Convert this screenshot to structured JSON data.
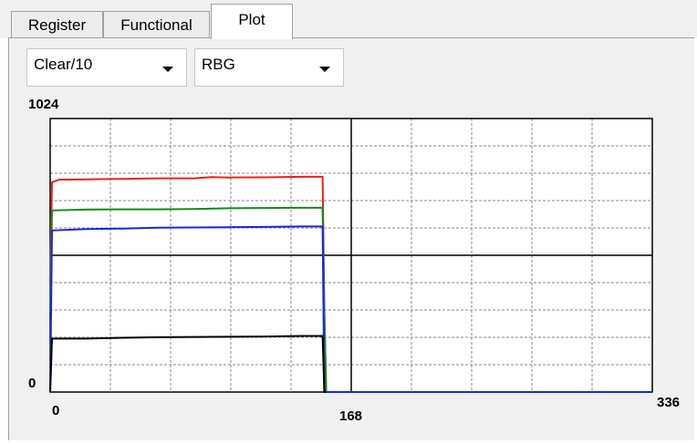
{
  "tabs": [
    {
      "label": "Register",
      "active": false
    },
    {
      "label": "Functional",
      "active": false
    },
    {
      "label": "Plot",
      "active": true
    }
  ],
  "controls": {
    "mode_select": {
      "value": "Clear/10"
    },
    "channel_select": {
      "value": "RBG"
    }
  },
  "colors": {
    "red": "#e8231f",
    "green": "#138a1c",
    "blue": "#1c24e6",
    "black": "#000000",
    "grid": "#888888"
  },
  "chart_data": {
    "type": "line",
    "xlim": [
      0,
      336
    ],
    "ylim": [
      0,
      1024
    ],
    "grid": true,
    "x_major_dividers": [
      168
    ],
    "y_major_dividers": [
      512
    ],
    "x_ticks": [
      "0",
      "168",
      "336"
    ],
    "y_ticks": [
      "1024",
      "0"
    ],
    "series": [
      {
        "color": "red",
        "points": [
          [
            0,
            400
          ],
          [
            1,
            785
          ],
          [
            5,
            795
          ],
          [
            20,
            796
          ],
          [
            40,
            798
          ],
          [
            60,
            800
          ],
          [
            80,
            800
          ],
          [
            90,
            805
          ],
          [
            100,
            803
          ],
          [
            120,
            804
          ],
          [
            140,
            806
          ],
          [
            152,
            806
          ],
          [
            153,
            300
          ],
          [
            154,
            0
          ],
          [
            336,
            0
          ]
        ]
      },
      {
        "color": "green",
        "points": [
          [
            0,
            300
          ],
          [
            1,
            680
          ],
          [
            20,
            683
          ],
          [
            40,
            684
          ],
          [
            60,
            684
          ],
          [
            80,
            685
          ],
          [
            100,
            688
          ],
          [
            120,
            689
          ],
          [
            140,
            690
          ],
          [
            152,
            690
          ],
          [
            153,
            300
          ],
          [
            154,
            0
          ],
          [
            336,
            0
          ]
        ]
      },
      {
        "color": "blue",
        "points": [
          [
            0,
            0
          ],
          [
            1,
            605
          ],
          [
            20,
            610
          ],
          [
            40,
            612
          ],
          [
            60,
            615
          ],
          [
            80,
            616
          ],
          [
            100,
            617
          ],
          [
            120,
            618
          ],
          [
            140,
            620
          ],
          [
            152,
            620
          ],
          [
            153,
            0
          ],
          [
            336,
            0
          ]
        ]
      },
      {
        "color": "black",
        "points": [
          [
            0,
            0
          ],
          [
            1,
            200
          ],
          [
            20,
            200
          ],
          [
            40,
            203
          ],
          [
            60,
            205
          ],
          [
            80,
            206
          ],
          [
            100,
            207
          ],
          [
            120,
            208
          ],
          [
            140,
            210
          ],
          [
            152,
            210
          ],
          [
            153,
            0
          ],
          [
            154,
            0
          ]
        ]
      }
    ]
  }
}
